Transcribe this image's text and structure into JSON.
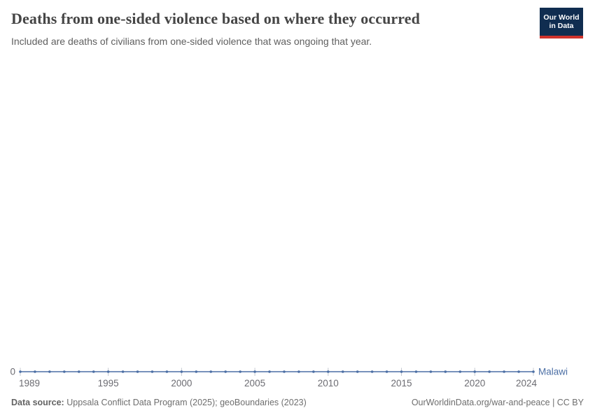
{
  "header": {
    "title": "Deaths from one-sided violence based on where they occurred",
    "subtitle": "Included are deaths of civilians from one-sided violence that was ongoing that year."
  },
  "logo": {
    "line1": "Our World",
    "line2": "in Data",
    "bg_color": "#102d50",
    "accent_color": "#cf332c"
  },
  "footer": {
    "data_source_label": "Data source:",
    "data_source_value": "Uppsala Conflict Data Program (2025); geoBoundaries (2023)",
    "attribution": "OurWorldinData.org/war-and-peace | CC BY"
  },
  "chart_data": {
    "type": "line",
    "title": "Deaths from one-sided violence based on where they occurred",
    "xlabel": "",
    "ylabel": "",
    "x": [
      1989,
      1990,
      1991,
      1992,
      1993,
      1994,
      1995,
      1996,
      1997,
      1998,
      1999,
      2000,
      2001,
      2002,
      2003,
      2004,
      2005,
      2006,
      2007,
      2008,
      2009,
      2010,
      2011,
      2012,
      2013,
      2014,
      2015,
      2016,
      2017,
      2018,
      2019,
      2020,
      2021,
      2022,
      2023,
      2024
    ],
    "series": [
      {
        "name": "Malawi",
        "color": "#4c6fa5",
        "values": [
          0,
          0,
          0,
          0,
          0,
          0,
          0,
          0,
          0,
          0,
          0,
          0,
          0,
          0,
          0,
          0,
          0,
          0,
          0,
          0,
          0,
          0,
          0,
          0,
          0,
          0,
          0,
          0,
          0,
          0,
          0,
          0,
          0,
          0,
          0,
          0
        ]
      }
    ],
    "x_ticks": [
      1989,
      1995,
      2000,
      2005,
      2010,
      2015,
      2020,
      2024
    ],
    "y_ticks": [
      0
    ],
    "xlim": [
      1989,
      2024
    ],
    "ylim": [
      0,
      1
    ],
    "grid": false,
    "legend_position": "end-of-line",
    "marker": "dot-every-year",
    "tick_color": "#c3c8d0",
    "tick_label_color": "#6c6c72"
  }
}
